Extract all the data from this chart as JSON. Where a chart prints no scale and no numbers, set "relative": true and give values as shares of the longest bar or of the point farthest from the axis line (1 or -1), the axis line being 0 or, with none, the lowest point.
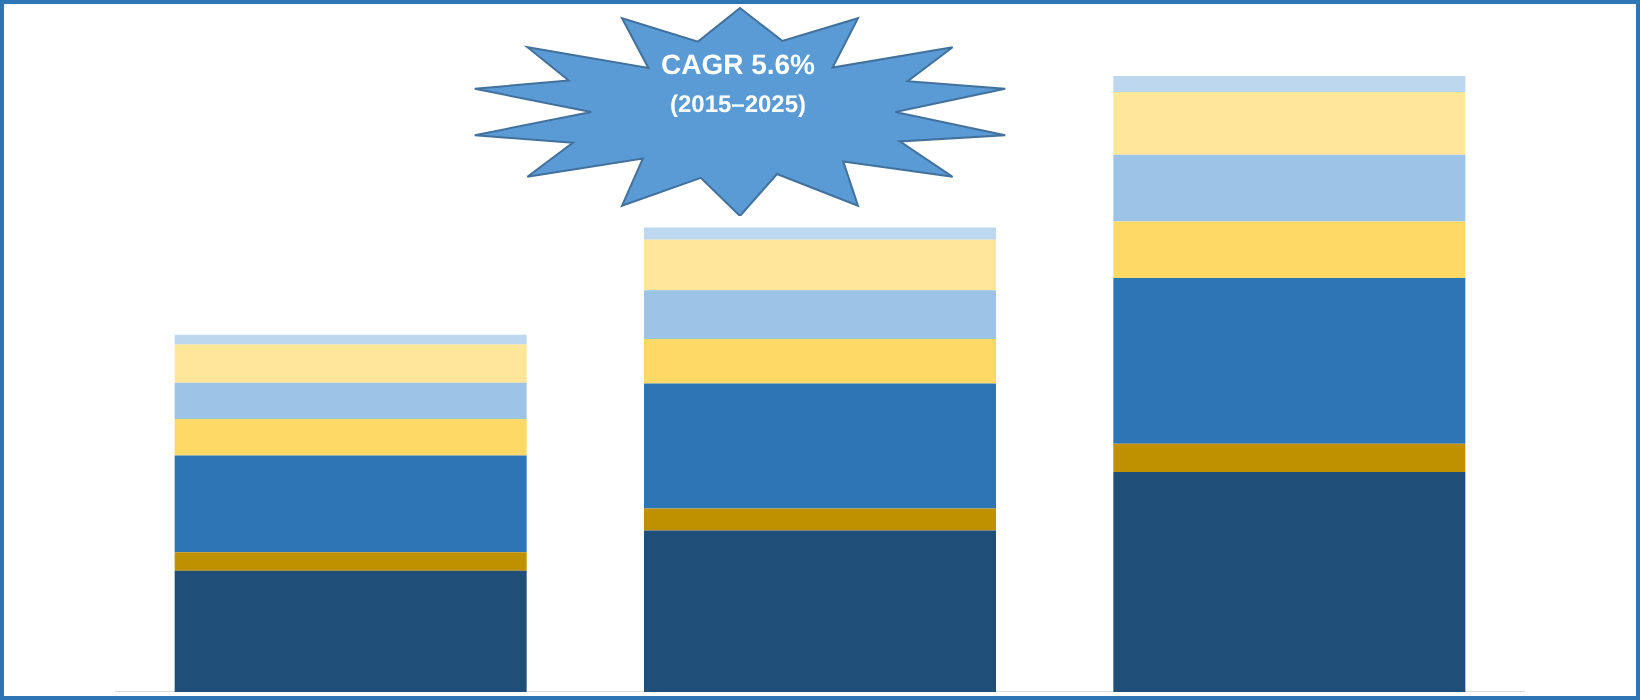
{
  "chart_data": {
    "type": "bar",
    "stacked": true,
    "relative": true,
    "categories": [
      null,
      null,
      null
    ],
    "series": [
      {
        "color": "#1f4e79",
        "values": [
          0.197,
          0.262,
          0.357
        ]
      },
      {
        "color": "#bf9000",
        "values": [
          0.03,
          0.036,
          0.046
        ]
      },
      {
        "color": "#2e75b6",
        "values": [
          0.157,
          0.203,
          0.269
        ]
      },
      {
        "color": "#ffd966",
        "values": [
          0.059,
          0.072,
          0.092
        ]
      },
      {
        "color": "#9dc3e6",
        "values": [
          0.059,
          0.079,
          0.108
        ]
      },
      {
        "color": "#ffe699",
        "values": [
          0.062,
          0.082,
          0.102
        ]
      },
      {
        "color": "#bdd7ee",
        "values": [
          0.016,
          0.02,
          0.026
        ]
      }
    ],
    "annotations": [
      "CAGR 5.6%",
      "(2015–2025)"
    ],
    "legend": false,
    "grid": false
  }
}
